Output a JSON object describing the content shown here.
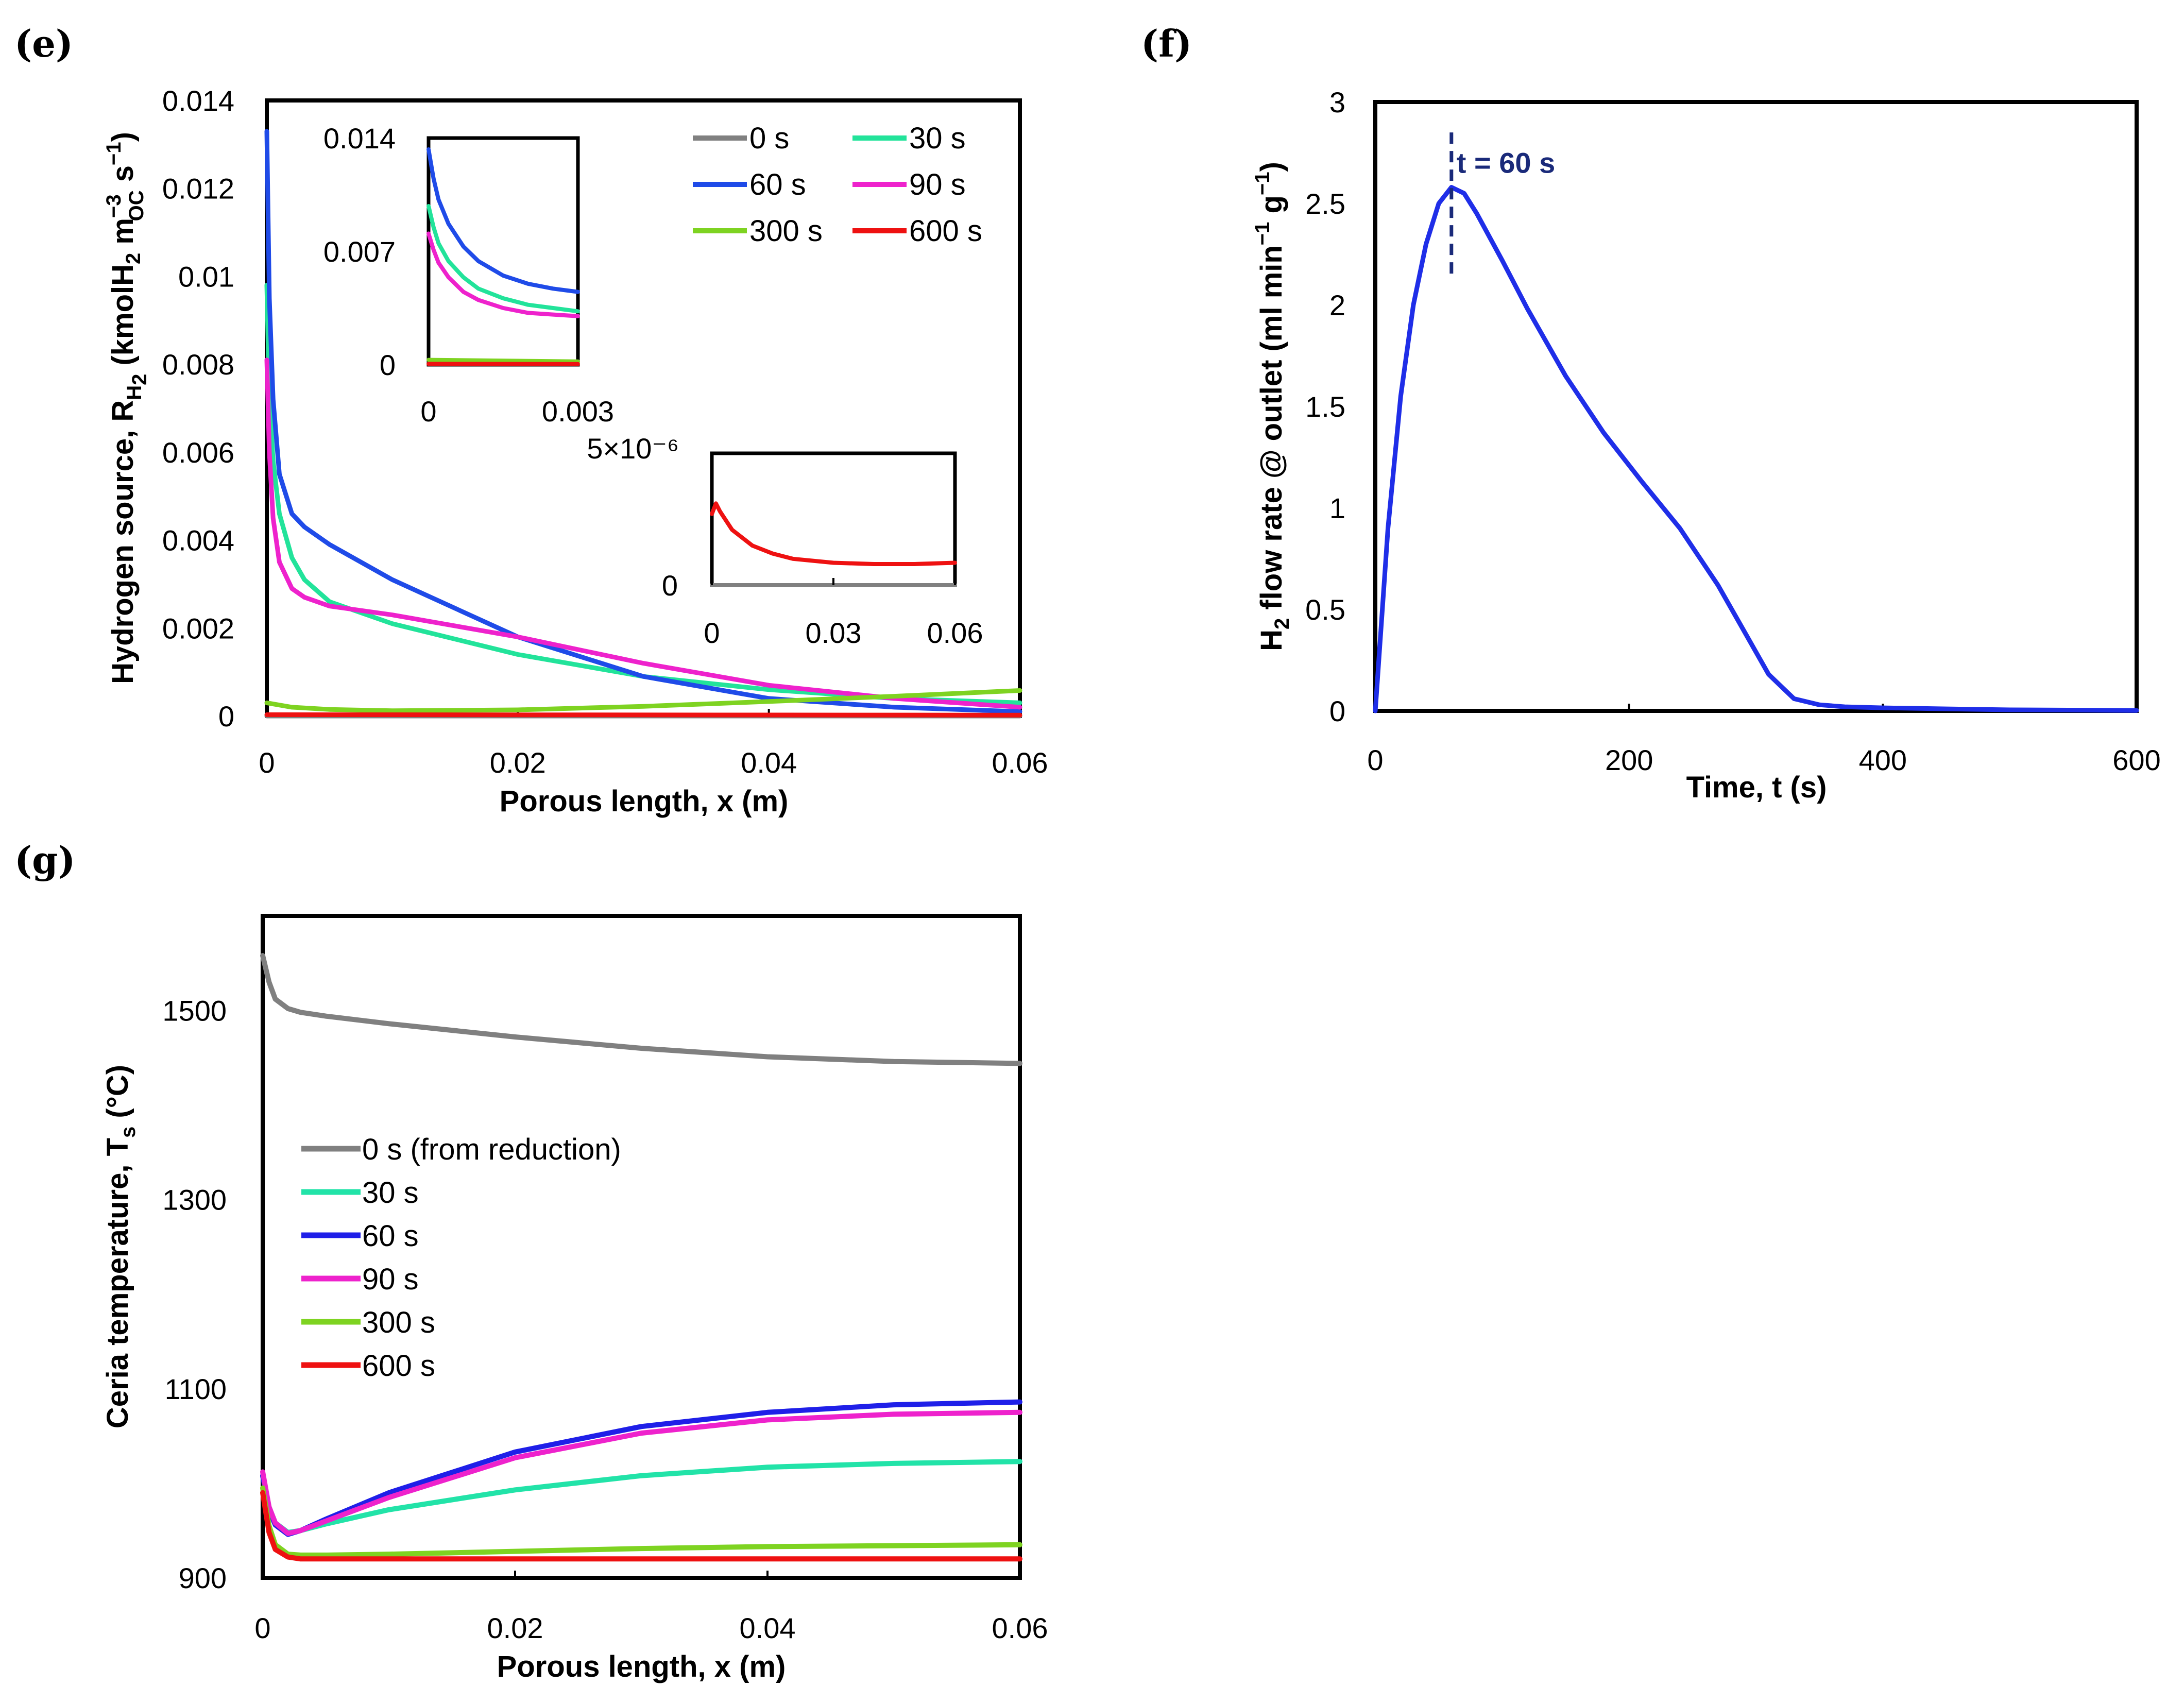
{
  "chart_data": [
    {
      "panel": "(e)",
      "type": "line",
      "xlabel": "Porous length, x (m)",
      "ylabel": "Hydrogen source, R_H2 (kmolH2 m_OC^-3 s^-1)",
      "ylabel_parts": {
        "main": "Hydrogen source, R",
        "sub": "H",
        "sub2": "2",
        "unit_open": " (kmolH",
        "unit_h2": "2",
        "unit_m": " m",
        "unit_sup": "−3",
        "unit_sub": "OC",
        "unit_s": " s",
        "unit_s_sup": "−1",
        "unit_close": ")"
      },
      "xlim": [
        0,
        0.06
      ],
      "ylim": [
        0,
        0.014
      ],
      "xticks": [
        "0",
        "0.02",
        "0.04",
        "0.06"
      ],
      "yticks": [
        "0",
        "0.002",
        "0.004",
        "0.006",
        "0.008",
        "0.01",
        "0.012",
        "0.014"
      ],
      "legend_position": "top-right",
      "series": [
        {
          "name": "0 s",
          "color": "#808080",
          "x": [
            0,
            0.06
          ],
          "y": [
            0,
            0
          ]
        },
        {
          "name": "30 s",
          "color": "#22e39a",
          "x": [
            0,
            0.0002,
            0.0005,
            0.001,
            0.002,
            0.003,
            0.005,
            0.01,
            0.02,
            0.03,
            0.04,
            0.05,
            0.06
          ],
          "y": [
            0.0098,
            0.0072,
            0.0058,
            0.0046,
            0.0036,
            0.0031,
            0.0026,
            0.0021,
            0.0014,
            0.0009,
            0.0006,
            0.0004,
            0.0003
          ]
        },
        {
          "name": "60 s",
          "color": "#1f4be8",
          "x": [
            0,
            0.0002,
            0.0005,
            0.001,
            0.002,
            0.003,
            0.005,
            0.01,
            0.02,
            0.03,
            0.04,
            0.05,
            0.06
          ],
          "y": [
            0.0133,
            0.0095,
            0.0072,
            0.0055,
            0.0046,
            0.0043,
            0.0039,
            0.0031,
            0.0018,
            0.0009,
            0.0004,
            0.0002,
            0.0001
          ]
        },
        {
          "name": "90 s",
          "color": "#ee22cc",
          "x": [
            0,
            0.0002,
            0.0005,
            0.001,
            0.002,
            0.003,
            0.005,
            0.01,
            0.02,
            0.03,
            0.04,
            0.05,
            0.06
          ],
          "y": [
            0.0081,
            0.006,
            0.0045,
            0.0035,
            0.0029,
            0.0027,
            0.0025,
            0.0023,
            0.0018,
            0.0012,
            0.0007,
            0.0004,
            0.0002
          ]
        },
        {
          "name": "300 s",
          "color": "#7ed321",
          "x": [
            0,
            0.002,
            0.005,
            0.01,
            0.02,
            0.03,
            0.04,
            0.05,
            0.06
          ],
          "y": [
            0.0003,
            0.0002,
            0.00015,
            0.00012,
            0.00014,
            0.00022,
            0.00033,
            0.00045,
            0.00058
          ]
        },
        {
          "name": "600 s",
          "color": "#ee1111",
          "x": [
            0,
            0.06
          ],
          "y": [
            3e-05,
            2e-05
          ]
        }
      ],
      "insets": [
        {
          "xlim": [
            0,
            0.003
          ],
          "ylim": [
            0,
            0.014
          ],
          "xticks": [
            "0",
            "0.003"
          ],
          "yticks": [
            "0",
            "0.007",
            "0.014"
          ],
          "series": [
            {
              "name": "60 s",
              "color": "#1f4be8",
              "x": [
                0,
                0.0001,
                0.0002,
                0.0004,
                0.0007,
                0.001,
                0.0015,
                0.002,
                0.0025,
                0.003
              ],
              "y": [
                0.0133,
                0.0115,
                0.0102,
                0.0087,
                0.0073,
                0.0064,
                0.0055,
                0.005,
                0.0047,
                0.0045
              ]
            },
            {
              "name": "30 s",
              "color": "#22e39a",
              "x": [
                0,
                0.0001,
                0.0002,
                0.0004,
                0.0007,
                0.001,
                0.0015,
                0.002,
                0.0025,
                0.003
              ],
              "y": [
                0.0098,
                0.0085,
                0.0075,
                0.0064,
                0.0054,
                0.0047,
                0.0041,
                0.0037,
                0.0035,
                0.0033
              ]
            },
            {
              "name": "90 s",
              "color": "#ee22cc",
              "x": [
                0,
                0.0001,
                0.0002,
                0.0004,
                0.0007,
                0.001,
                0.0015,
                0.002,
                0.0025,
                0.003
              ],
              "y": [
                0.0081,
                0.0071,
                0.0063,
                0.0054,
                0.0045,
                0.004,
                0.0035,
                0.0032,
                0.0031,
                0.003
              ]
            },
            {
              "name": "300 s",
              "color": "#7ed321",
              "x": [
                0,
                0.003
              ],
              "y": [
                0.0003,
                0.0002
              ]
            },
            {
              "name": "600 s",
              "color": "#ee1111",
              "x": [
                0,
                0.003
              ],
              "y": [
                5e-05,
                4e-05
              ]
            }
          ]
        },
        {
          "xlim": [
            0,
            0.06
          ],
          "ylim": [
            0,
            5e-06
          ],
          "xticks": [
            "0",
            "0.03",
            "0.06"
          ],
          "yticks": [
            "0",
            "5×10⁻⁶"
          ],
          "series": [
            {
              "name": "0 s",
              "color": "#808080",
              "x": [
                0,
                0.06
              ],
              "y": [
                0,
                0
              ]
            },
            {
              "name": "600 s",
              "color": "#ee1111",
              "x": [
                0,
                0.001,
                0.002,
                0.005,
                0.01,
                0.015,
                0.02,
                0.03,
                0.04,
                0.05,
                0.06
              ],
              "y": [
                2.7e-06,
                3.1e-06,
                2.8e-06,
                2.1e-06,
                1.5e-06,
                1.2e-06,
                1e-06,
                8.5e-07,
                8e-07,
                8e-07,
                8.5e-07
              ]
            }
          ]
        }
      ]
    },
    {
      "panel": "(f)",
      "type": "line",
      "xlabel": "Time, t (s)",
      "ylabel": "H2 flow rate @ outlet (ml min^-1 g^-1)",
      "ylabel_parts": {
        "h": "H",
        "sub": "2",
        "rest": " flow rate @ outlet (ml min",
        "sup1": "−1",
        "g": " g",
        "sup2": "−1",
        "close": ")"
      },
      "xlim": [
        0,
        600
      ],
      "ylim": [
        0,
        3
      ],
      "xticks": [
        "0",
        "200",
        "400",
        "600"
      ],
      "yticks": [
        "0",
        "0.5",
        "1",
        "1.5",
        "2",
        "2.5",
        "3"
      ],
      "annotation": "t = 60 s",
      "annotation_x": 60,
      "series": [
        {
          "name": "",
          "color": "#1f2ee8",
          "x": [
            0,
            10,
            20,
            30,
            40,
            50,
            60,
            70,
            80,
            100,
            120,
            150,
            180,
            210,
            240,
            270,
            290,
            310,
            330,
            350,
            370,
            400,
            450,
            500,
            600
          ],
          "y": [
            0,
            0.9,
            1.55,
            2.0,
            2.3,
            2.5,
            2.58,
            2.55,
            2.45,
            2.22,
            1.98,
            1.65,
            1.37,
            1.13,
            0.9,
            0.62,
            0.4,
            0.18,
            0.06,
            0.03,
            0.02,
            0.015,
            0.01,
            0.005,
            0.002
          ]
        }
      ]
    },
    {
      "panel": "(g)",
      "type": "line",
      "xlabel": "Porous length, x (m)",
      "ylabel": "Ceria temperature, Ts (°C)",
      "ylabel_parts": {
        "main": "Ceria temperature, T",
        "sub": "s",
        "rest": " (°C)"
      },
      "xlim": [
        0,
        0.06
      ],
      "ylim": [
        900,
        1600
      ],
      "xticks": [
        "0",
        "0.02",
        "0.04",
        "0.06"
      ],
      "yticks": [
        "900",
        "1100",
        "1300",
        "1500"
      ],
      "ytick_values": [
        900,
        1100,
        1300,
        1500
      ],
      "legend_position": "left",
      "series": [
        {
          "name": "0 s (from reduction)",
          "color": "#808080",
          "x": [
            0,
            0.0005,
            0.001,
            0.002,
            0.003,
            0.005,
            0.01,
            0.02,
            0.03,
            0.04,
            0.05,
            0.06
          ],
          "y": [
            1558,
            1530,
            1512,
            1502,
            1498,
            1494,
            1486,
            1472,
            1460,
            1451,
            1446,
            1444
          ]
        },
        {
          "name": "30 s",
          "color": "#22e3a8",
          "x": [
            0,
            0.0005,
            0.001,
            0.002,
            0.003,
            0.005,
            0.01,
            0.02,
            0.03,
            0.04,
            0.05,
            0.06
          ],
          "y": [
            1008,
            975,
            958,
            948,
            950,
            957,
            972,
            993,
            1008,
            1017,
            1021,
            1023
          ]
        },
        {
          "name": "60 s",
          "color": "#1f1fe8",
          "x": [
            0,
            0.0005,
            0.001,
            0.002,
            0.003,
            0.005,
            0.01,
            0.02,
            0.03,
            0.04,
            0.05,
            0.06
          ],
          "y": [
            1008,
            972,
            956,
            946,
            950,
            962,
            990,
            1033,
            1060,
            1075,
            1083,
            1086
          ]
        },
        {
          "name": "90 s",
          "color": "#ee22cc",
          "x": [
            0,
            0.0005,
            0.001,
            0.002,
            0.003,
            0.005,
            0.01,
            0.02,
            0.03,
            0.04,
            0.05,
            0.06
          ],
          "y": [
            1012,
            975,
            958,
            947,
            950,
            960,
            985,
            1027,
            1053,
            1067,
            1073,
            1075
          ]
        },
        {
          "name": "300 s",
          "color": "#7ed321",
          "x": [
            0,
            0.0005,
            0.001,
            0.002,
            0.003,
            0.005,
            0.01,
            0.02,
            0.03,
            0.04,
            0.05,
            0.06
          ],
          "y": [
            995,
            955,
            935,
            925,
            924,
            924,
            925,
            928,
            931,
            933,
            934,
            935
          ]
        },
        {
          "name": "600 s",
          "color": "#ee1111",
          "x": [
            0,
            0.0005,
            0.001,
            0.002,
            0.003,
            0.005,
            0.01,
            0.02,
            0.03,
            0.04,
            0.05,
            0.06
          ],
          "y": [
            990,
            948,
            930,
            922,
            920,
            920,
            920,
            920,
            920,
            920,
            920,
            920
          ]
        }
      ]
    }
  ]
}
